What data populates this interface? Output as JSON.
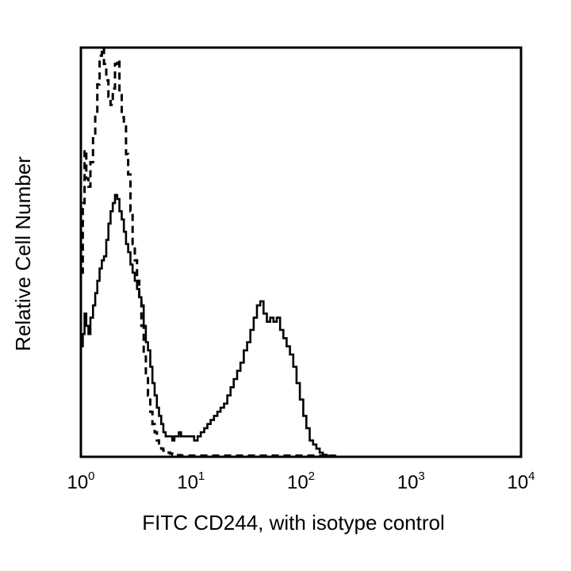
{
  "chart_data": {
    "type": "line",
    "title": "",
    "xlabel": "FITC CD244, with isotype control",
    "ylabel": "Relative Cell Number",
    "x_scale": "log",
    "xlim": [
      1,
      10000
    ],
    "ylim": [
      0,
      100
    ],
    "x_ticks": [
      {
        "value": 1,
        "base": "10",
        "exp": "0"
      },
      {
        "value": 10,
        "base": "10",
        "exp": "1"
      },
      {
        "value": 100,
        "base": "10",
        "exp": "2"
      },
      {
        "value": 1000,
        "base": "10",
        "exp": "3"
      },
      {
        "value": 10000,
        "base": "10",
        "exp": "4"
      }
    ],
    "grid": false,
    "legend": "none",
    "series": [
      {
        "style": "dashed",
        "color": "#000000",
        "x": [
          1.0,
          1.04,
          1.08,
          1.12,
          1.17,
          1.22,
          1.29,
          1.35,
          1.41,
          1.48,
          1.55,
          1.62,
          1.7,
          1.78,
          1.86,
          1.95,
          2.04,
          2.14,
          2.24,
          2.35,
          2.46,
          2.57,
          2.69,
          2.82,
          2.95,
          3.09,
          3.24,
          3.39,
          3.55,
          3.72,
          3.89,
          4.07,
          4.27,
          4.47,
          4.68,
          4.9,
          5.13,
          5.37,
          5.62,
          5.89,
          6.17,
          6.46,
          6.76,
          7.08,
          7.41,
          7.76,
          8.13,
          8.51,
          8.91,
          9.33,
          10.0,
          12.0,
          15.0,
          20.0,
          30.0,
          50.0,
          80.0,
          120,
          160,
          200
        ],
        "y": [
          45,
          62,
          75,
          68,
          66,
          72,
          79,
          84,
          91,
          98,
          100,
          96,
          92,
          88,
          86,
          90,
          96,
          97,
          89,
          83,
          81,
          74,
          69,
          60,
          52,
          48,
          43,
          38,
          32,
          25,
          20,
          15,
          11,
          8,
          6,
          4,
          3,
          2,
          1.5,
          1,
          1,
          0.8,
          0.6,
          0.5,
          0.4,
          0.4,
          0.3,
          0.3,
          0.3,
          0.3,
          0.3,
          0.3,
          0.2,
          0.2,
          0.2,
          0.2,
          0.2,
          0.1,
          0.1,
          0
        ]
      },
      {
        "style": "solid",
        "color": "#000000",
        "x": [
          1.0,
          1.04,
          1.08,
          1.12,
          1.17,
          1.22,
          1.29,
          1.35,
          1.41,
          1.48,
          1.55,
          1.62,
          1.7,
          1.78,
          1.86,
          1.95,
          2.04,
          2.14,
          2.24,
          2.35,
          2.46,
          2.57,
          2.69,
          2.82,
          2.95,
          3.09,
          3.24,
          3.39,
          3.55,
          3.72,
          3.89,
          4.07,
          4.27,
          4.47,
          4.68,
          4.9,
          5.13,
          5.37,
          5.62,
          5.89,
          6.17,
          6.46,
          6.76,
          7.08,
          7.41,
          7.76,
          8.13,
          8.51,
          8.91,
          9.33,
          10.0,
          10.7,
          11.5,
          12.3,
          13.2,
          14.1,
          15.1,
          16.2,
          17.4,
          18.6,
          20.0,
          21.4,
          22.9,
          24.5,
          26.3,
          28.2,
          30.2,
          32.4,
          34.7,
          37.2,
          39.8,
          42.7,
          45.7,
          49.0,
          52.5,
          56.2,
          60.3,
          64.6,
          69.2,
          74.1,
          79.4,
          85.1,
          91.2,
          97.7,
          105,
          112,
          120,
          129,
          138,
          148,
          158,
          170,
          182,
          195,
          209
        ],
        "y": [
          27,
          30,
          35,
          32,
          30,
          34,
          37,
          40,
          43,
          46,
          48,
          49,
          53,
          57,
          60,
          62,
          64,
          63,
          60,
          58,
          55,
          52,
          50,
          47,
          45,
          43,
          41,
          39,
          37,
          32,
          28,
          26,
          22,
          18,
          15,
          12,
          10,
          8,
          6,
          5,
          5,
          5,
          4,
          5,
          5,
          6,
          5,
          5,
          5,
          5,
          5,
          4,
          5,
          6,
          7,
          8,
          9,
          10,
          11,
          12,
          13,
          15,
          17,
          19,
          21,
          23,
          26,
          28,
          31,
          34,
          37,
          38,
          35,
          33,
          34,
          33,
          34,
          31,
          29,
          27,
          25,
          22,
          18,
          14,
          10,
          7,
          4,
          3,
          2,
          1,
          0.5,
          0.3,
          0.1,
          0,
          0
        ]
      }
    ]
  }
}
